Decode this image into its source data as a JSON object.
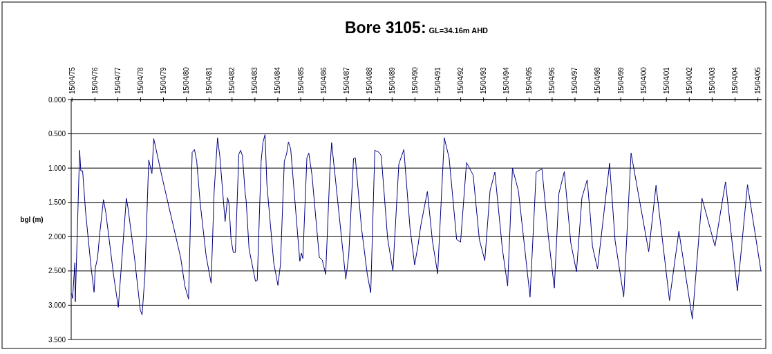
{
  "chart_data": {
    "type": "line",
    "title": "Bore 3105:",
    "subtitle": "GL=34.16m AHD",
    "ylabel": "bgl (m)",
    "xlim": [
      "1975-04-02",
      "2005-06-14"
    ],
    "ylim": [
      3.5,
      0
    ],
    "xticks": [
      {
        "value": "1975-04-15",
        "label": "15/04/75"
      },
      {
        "value": "1976-04-15",
        "label": "15/04/76"
      },
      {
        "value": "1977-04-15",
        "label": "15/04/77"
      },
      {
        "value": "1978-04-15",
        "label": "15/04/78"
      },
      {
        "value": "1979-04-15",
        "label": "15/04/79"
      },
      {
        "value": "1980-04-15",
        "label": "15/04/80"
      },
      {
        "value": "1981-04-15",
        "label": "15/04/81"
      },
      {
        "value": "1982-04-15",
        "label": "15/04/82"
      },
      {
        "value": "1983-04-15",
        "label": "15/04/83"
      },
      {
        "value": "1984-04-15",
        "label": "15/04/84"
      },
      {
        "value": "1985-04-15",
        "label": "15/04/85"
      },
      {
        "value": "1986-04-15",
        "label": "15/04/86"
      },
      {
        "value": "1987-04-15",
        "label": "15/04/87"
      },
      {
        "value": "1988-04-15",
        "label": "15/04/88"
      },
      {
        "value": "1989-04-15",
        "label": "15/04/89"
      },
      {
        "value": "1990-04-15",
        "label": "15/04/90"
      },
      {
        "value": "1991-04-15",
        "label": "15/04/91"
      },
      {
        "value": "1992-04-15",
        "label": "15/04/92"
      },
      {
        "value": "1993-04-15",
        "label": "15/04/93"
      },
      {
        "value": "1994-04-15",
        "label": "15/04/94"
      },
      {
        "value": "1995-04-15",
        "label": "15/04/95"
      },
      {
        "value": "1996-04-15",
        "label": "15/04/96"
      },
      {
        "value": "1997-04-15",
        "label": "15/04/97"
      },
      {
        "value": "1998-04-15",
        "label": "15/04/98"
      },
      {
        "value": "1999-04-15",
        "label": "15/04/99"
      },
      {
        "value": "2000-04-15",
        "label": "15/04/00"
      },
      {
        "value": "2001-04-15",
        "label": "15/04/01"
      },
      {
        "value": "2002-04-15",
        "label": "15/04/02"
      },
      {
        "value": "2003-04-15",
        "label": "15/04/03"
      },
      {
        "value": "2004-04-15",
        "label": "15/04/04"
      },
      {
        "value": "2005-04-15",
        "label": "15/04/05"
      }
    ],
    "yticks": [
      {
        "value": 0,
        "label": "0.000"
      },
      {
        "value": 0.5,
        "label": "0.500"
      },
      {
        "value": 1,
        "label": "1.000"
      },
      {
        "value": 1.5,
        "label": "1.500"
      },
      {
        "value": 2,
        "label": "2.000"
      },
      {
        "value": 2.5,
        "label": "2.500"
      },
      {
        "value": 3,
        "label": "3.000"
      },
      {
        "value": 3.5,
        "label": "3.500"
      }
    ],
    "grid": "y",
    "marker": "none",
    "line_style": "solid",
    "series": [
      {
        "color": "#000080",
        "x": [
          "1975-04-09",
          "1975-04-24",
          "1975-05-31",
          "1975-06-07",
          "1975-08-15",
          "1975-09-03",
          "1975-10-02",
          "1975-11-18",
          "1976-02-14",
          "1976-04-02",
          "1976-04-21",
          "1976-05-27",
          "1976-07-03",
          "1976-08-30",
          "1976-10-05",
          "1977-02-10",
          "1977-04-24",
          "1977-06-18",
          "1977-08-30",
          "1977-09-24",
          "1978-01-08",
          "1978-04-10",
          "1978-05-09",
          "1978-06-22",
          "1978-08-23",
          "1978-10-13",
          "1978-11-11",
          "1979-03-26",
          "1980-01-16",
          "1980-03-22",
          "1980-05-20",
          "1980-07-17",
          "1980-08-23",
          "1980-09-28",
          "1980-11-22",
          "1981-02-25",
          "1981-05-16",
          "1981-07-03",
          "1981-08-26",
          "1981-10-02",
          "1981-12-25",
          "1982-02-03",
          "1982-02-25",
          "1982-03-30",
          "1982-05-05",
          "1982-06-07",
          "1982-08-01",
          "1982-08-30",
          "1982-09-28",
          "1982-11-11",
          "1982-11-26",
          "1983-01-12",
          "1983-04-24",
          "1983-05-23",
          "1983-07-24",
          "1983-08-23",
          "1983-09-24",
          "1983-10-24",
          "1984-02-10",
          "1984-04-17",
          "1984-05-27",
          "1984-07-28",
          "1984-09-03",
          "1984-10-02",
          "1984-11-07",
          "1985-04-02",
          "1985-04-28",
          "1985-05-20",
          "1985-07-24",
          "1985-08-23",
          "1985-10-13",
          "1986-02-07",
          "1986-03-26",
          "1986-05-20",
          "1986-07-28",
          "1986-08-23",
          "1986-10-16",
          "1987-04-06",
          "1987-05-23",
          "1987-08-08",
          "1987-09-06",
          "1987-12-14",
          "1988-03-15",
          "1988-05-09",
          "1988-07-13",
          "1988-09-17",
          "1988-10-24",
          "1989-02-03",
          "1989-04-28",
          "1989-08-01",
          "1989-10-20",
          "1990-01-27",
          "1990-04-10",
          "1990-06-03",
          "1990-07-17",
          "1990-10-31",
          "1991-01-19",
          "1991-04-13",
          "1991-07-28",
          "1991-10-13",
          "1992-02-10",
          "1992-04-13",
          "1992-07-17",
          "1992-10-31",
          "1993-02-07",
          "1993-05-05",
          "1993-07-28",
          "1993-10-13",
          "1994-02-10",
          "1994-05-05",
          "1994-07-21",
          "1994-10-24",
          "1995-04-28",
          "1995-08-04",
          "1995-11-04",
          "1996-02-14",
          "1996-05-20",
          "1996-08-01",
          "1996-10-27",
          "1997-02-07",
          "1997-05-09",
          "1997-08-04",
          "1997-10-27",
          "1997-12-17",
          "1998-01-19",
          "1998-04-10",
          "1998-10-20",
          "1999-01-16",
          "1999-06-03",
          "1999-09-28",
          "2000-07-06",
          "2000-10-31",
          "2001-06-03",
          "2001-10-31",
          "2002-06-03",
          "2002-11-04",
          "2003-05-31",
          "2003-11-15",
          "2004-05-23",
          "2004-10-31",
          "2005-06-03"
        ],
        "values": [
          2.83,
          2.9,
          2.38,
          2.95,
          0.74,
          1.04,
          1.04,
          1.64,
          2.45,
          2.81,
          2.46,
          2.31,
          1.94,
          1.46,
          1.64,
          2.58,
          3.03,
          2.35,
          1.44,
          1.57,
          2.31,
          3.07,
          3.14,
          2.58,
          0.88,
          1.08,
          0.57,
          1.14,
          2.31,
          2.72,
          2.91,
          0.77,
          0.73,
          0.9,
          1.51,
          2.28,
          2.68,
          1.34,
          0.56,
          0.83,
          1.78,
          1.43,
          1.52,
          2.04,
          2.23,
          2.23,
          0.8,
          0.74,
          0.82,
          1.37,
          1.47,
          2.18,
          2.65,
          2.64,
          0.9,
          0.62,
          0.51,
          1.24,
          2.38,
          2.71,
          2.41,
          0.9,
          0.79,
          0.62,
          0.72,
          2.36,
          2.24,
          2.32,
          0.85,
          0.78,
          1.1,
          2.3,
          2.34,
          2.55,
          1.0,
          0.63,
          1.1,
          2.62,
          2.28,
          0.86,
          0.85,
          1.88,
          2.55,
          2.82,
          0.74,
          0.77,
          0.82,
          2.03,
          2.5,
          0.94,
          0.73,
          1.88,
          2.41,
          2.13,
          1.84,
          1.34,
          2.06,
          2.54,
          0.56,
          0.85,
          2.04,
          2.08,
          0.92,
          1.1,
          2.04,
          2.35,
          1.33,
          1.06,
          2.18,
          2.72,
          1.0,
          1.33,
          2.88,
          1.06,
          1.01,
          1.99,
          2.75,
          1.37,
          1.05,
          2.09,
          2.51,
          1.43,
          1.17,
          1.71,
          2.14,
          2.47,
          0.93,
          2.06,
          2.88,
          0.78,
          2.22,
          1.25,
          2.93,
          1.92,
          3.2,
          1.44,
          2.14,
          1.2,
          2.79,
          1.24,
          2.5
        ]
      }
    ]
  }
}
